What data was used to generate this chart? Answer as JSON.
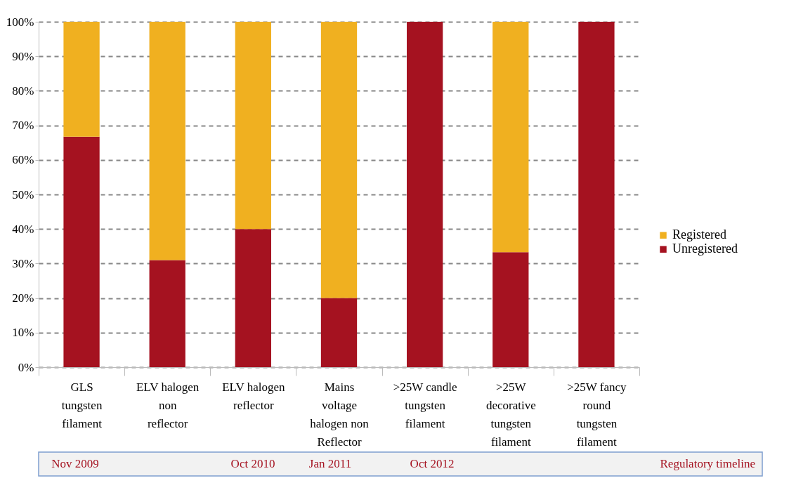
{
  "chart_data": {
    "type": "bar",
    "stacked": true,
    "categories": [
      "GLS tungsten filament",
      "ELV halogen non reflector",
      "ELV halogen reflector",
      "Mains voltage halogen non Reflector",
      ">25W candle tungsten filament",
      ">25W decorative tungsten filament",
      ">25W fancy round tungsten filament"
    ],
    "series": [
      {
        "name": "Unregistered",
        "color": "#a51220",
        "values": [
          66.7,
          31,
          40,
          20,
          100,
          33.3,
          100
        ]
      },
      {
        "name": "Registered",
        "color": "#f0b020",
        "values": [
          33.3,
          69,
          60,
          80,
          0,
          66.7,
          0
        ]
      }
    ],
    "ylim": [
      0,
      100
    ],
    "yticks": [
      {
        "value": 0,
        "label": "0%"
      },
      {
        "value": 10,
        "label": "10%"
      },
      {
        "value": 20,
        "label": "20%"
      },
      {
        "value": 30,
        "label": "30%"
      },
      {
        "value": 40,
        "label": "40%"
      },
      {
        "value": 50,
        "label": "50%"
      },
      {
        "value": 60,
        "label": "60%"
      },
      {
        "value": 70,
        "label": "70%"
      },
      {
        "value": 80,
        "label": "80%"
      },
      {
        "value": 90,
        "label": "90%"
      },
      {
        "value": 100,
        "label": "100%"
      }
    ],
    "grid": "y",
    "legend": "right",
    "annotations": [
      "Nov 2009",
      "Oct 2010",
      "Jan 2011",
      "Oct 2012",
      "Regulatory timeline"
    ]
  }
}
